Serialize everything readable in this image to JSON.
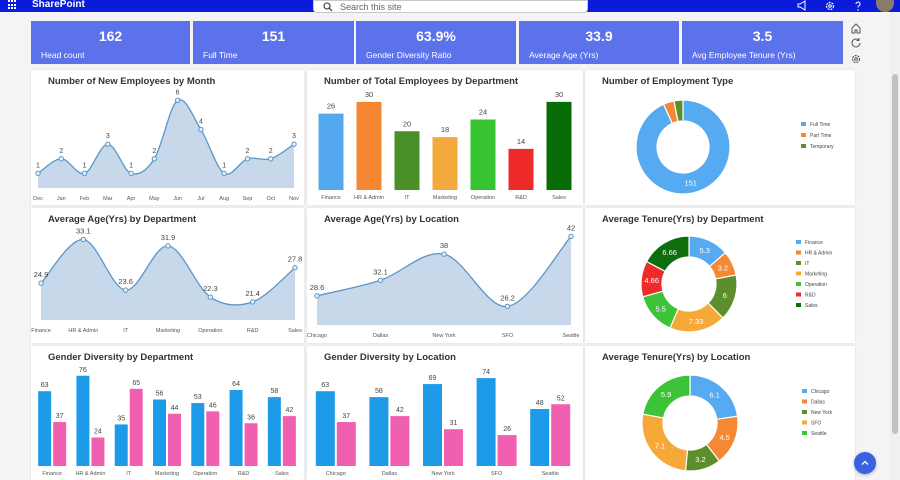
{
  "app": {
    "title": "SharePoint"
  },
  "search": {
    "placeholder": "Search this site"
  },
  "icons": {
    "waffle": "app-launcher-icon",
    "megaphone": "megaphone-icon",
    "settings": "gear-icon",
    "help": "help-icon",
    "home": "home-icon",
    "refresh": "refresh-icon",
    "options": "gear-icon",
    "scroll_up": "chevron-up-icon"
  },
  "colors": {
    "topbar": "#0a1cd9",
    "kpi": "#5b72ea",
    "area_fill": "#c6d8ea",
    "area_line": "#5b96c8",
    "blue": "#1e9be8",
    "pink": "#f05fb0"
  },
  "kpis": [
    {
      "value": "162",
      "label": "Head count"
    },
    {
      "value": "151",
      "label": "Full Time"
    },
    {
      "value": "63.9%",
      "label": "Gender Diversity Ratio"
    },
    {
      "value": "33.9",
      "label": "Average Age (Yrs)"
    },
    {
      "value": "3.5",
      "label": "Avg Employee Tenure (Yrs)"
    }
  ],
  "chart_data": [
    {
      "id": "new-employees",
      "type": "area",
      "title": "Number of New Employees by Month",
      "categories": [
        "Dec",
        "Jan",
        "Feb",
        "Mar",
        "Apr",
        "May",
        "Jun",
        "Jul",
        "Aug",
        "Sep",
        "Oct",
        "Nov"
      ],
      "values": [
        1,
        2,
        1,
        3,
        1,
        2,
        6,
        4,
        1,
        2,
        2,
        3
      ],
      "ylim": [
        0,
        6.5
      ]
    },
    {
      "id": "total-by-dept",
      "type": "bar",
      "title": "Number of Total Employees by Department",
      "categories": [
        "Finance",
        "HR & Admin",
        "IT",
        "Marketing",
        "Operation",
        "R&D",
        "Sales"
      ],
      "values": [
        26,
        30,
        20,
        18,
        24,
        14,
        30
      ],
      "colors": [
        "#53a8f0",
        "#f58732",
        "#4a8f27",
        "#f4a93c",
        "#36c431",
        "#ee2a2a",
        "#086d06"
      ],
      "ylim": [
        0,
        32
      ]
    },
    {
      "id": "employment-type",
      "type": "pie",
      "title": "Number of Employment Type",
      "labels": [
        "Full Time",
        "Part Time",
        "Temporary"
      ],
      "values": [
        151,
        6,
        5
      ],
      "colors": [
        "#55aaf1",
        "#f48834",
        "#5c8e2d"
      ],
      "data_labels": [
        "151",
        "",
        ""
      ]
    },
    {
      "id": "age-by-dept",
      "type": "area",
      "title": "Average Age(Yrs) by Department",
      "categories": [
        "Finance",
        "HR & Admin",
        "IT",
        "Marketing",
        "Operation",
        "R&D",
        "Sales"
      ],
      "values": [
        24.9,
        33.1,
        23.6,
        31.9,
        22.3,
        21.4,
        27.8
      ],
      "ylim": [
        18,
        34.5
      ]
    },
    {
      "id": "age-by-location",
      "type": "area",
      "title": "Average Age(Yrs) by Location",
      "categories": [
        "Chicago",
        "Dallas",
        "New York",
        "SFO",
        "Seattle"
      ],
      "values": [
        28.6,
        32.1,
        38,
        26.2,
        42
      ],
      "ylim": [
        22,
        43
      ]
    },
    {
      "id": "tenure-by-dept",
      "type": "pie",
      "title": "Average Tenure(Yrs) by Department",
      "labels": [
        "Finance",
        "HR & Admin",
        "IT",
        "Marketing",
        "Operation",
        "R&D",
        "Sales"
      ],
      "values": [
        5.3,
        3.2,
        6,
        7.33,
        5.5,
        4.66,
        6.66
      ],
      "colors": [
        "#55aaf1",
        "#f48834",
        "#5c8e2d",
        "#f6a838",
        "#3cc338",
        "#ec2b2b",
        "#0e6d0c"
      ],
      "data_labels": [
        "5.3",
        "3.2",
        "6",
        "7.33",
        "5.5",
        "4.66",
        "6.66"
      ]
    },
    {
      "id": "gender-by-dept",
      "type": "bar",
      "title": "Gender Diversity by Department",
      "categories": [
        "Finance",
        "HR & Admin",
        "IT",
        "Marketing",
        "Operation",
        "R&D",
        "Sales"
      ],
      "series": [
        {
          "values": [
            63,
            76,
            35,
            56,
            53,
            64,
            58
          ]
        },
        {
          "values": [
            37,
            24,
            65,
            44,
            46,
            36,
            42
          ]
        }
      ],
      "ylim": [
        0,
        80
      ]
    },
    {
      "id": "gender-by-location",
      "type": "bar",
      "title": "Gender Diversity by Location",
      "categories": [
        "Chicago",
        "Dallas",
        "New York",
        "SFO",
        "Seattle"
      ],
      "series": [
        {
          "values": [
            63,
            58,
            69,
            74,
            48
          ]
        },
        {
          "values": [
            37,
            42,
            31,
            26,
            52
          ]
        }
      ],
      "ylim": [
        0,
        80
      ]
    },
    {
      "id": "tenure-by-location",
      "type": "pie",
      "title": "Average Tenure(Yrs) by Location",
      "labels": [
        "Chicago",
        "Dallas",
        "New York",
        "SFO",
        "Seattle"
      ],
      "values": [
        6.1,
        4.5,
        3.2,
        7.1,
        5.9
      ],
      "colors": [
        "#55aaf1",
        "#f48834",
        "#5c8e2d",
        "#f6a838",
        "#3cc338"
      ],
      "data_labels": [
        "6.1",
        "4.5",
        "3.2",
        "7.1",
        "5.9"
      ]
    }
  ]
}
